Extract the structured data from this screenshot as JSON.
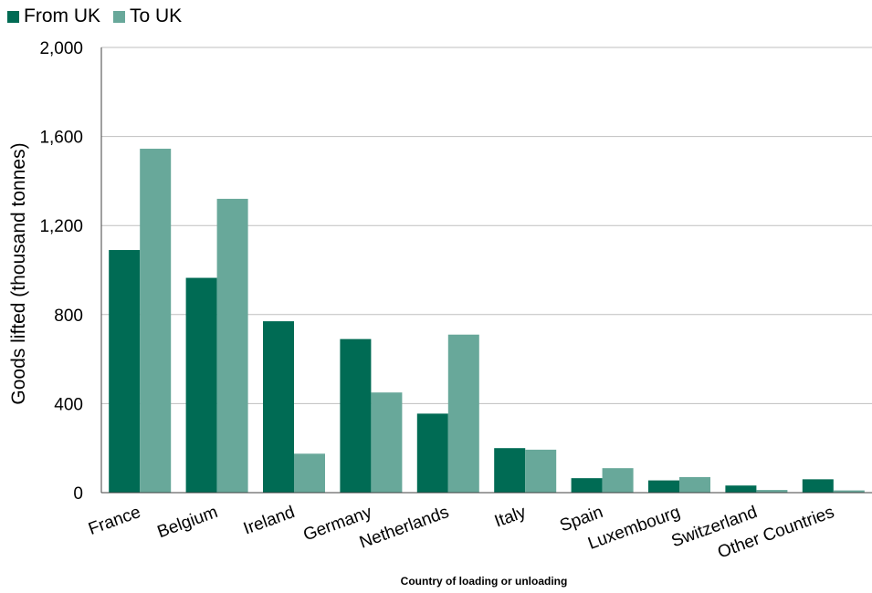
{
  "chart_data": {
    "type": "bar",
    "title": "",
    "xlabel": "Country of loading or unloading",
    "ylabel": "Goods lifted (thousand tonnes)",
    "ylim": [
      0,
      2000
    ],
    "yticks": [
      0,
      400,
      800,
      1200,
      1600,
      2000
    ],
    "ytick_labels": [
      "0",
      "400",
      "800",
      "1,200",
      "1,600",
      "2,000"
    ],
    "grid": true,
    "legend_position": "top-left",
    "categories": [
      "France",
      "Belgium",
      "Ireland",
      "Germany",
      "Netherlands",
      "Italy",
      "Spain",
      "Luxembourg",
      "Switzerland",
      "Other Countries"
    ],
    "series": [
      {
        "name": "From UK",
        "color": "#006b54",
        "values": [
          1090,
          965,
          770,
          690,
          355,
          200,
          65,
          55,
          32,
          60
        ]
      },
      {
        "name": "To UK",
        "color": "#68a89a",
        "values": [
          1545,
          1320,
          175,
          450,
          710,
          193,
          110,
          70,
          12,
          10
        ]
      }
    ]
  }
}
